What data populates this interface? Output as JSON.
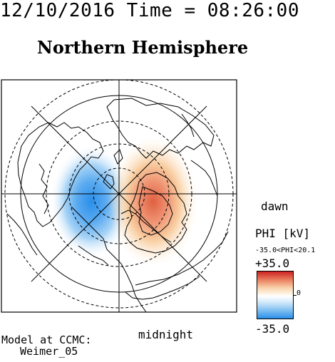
{
  "header": {
    "timestamp": "12/10/2016 Time = 08:26:00",
    "title": "Northern Hemisphere"
  },
  "map": {
    "projection": "polar stereographic",
    "grid": true,
    "cells_visible": [
      "Dusk convection cell (negative potential)",
      "Dawn convection cell (positive potential)"
    ],
    "colors": {
      "positive": "#e06040",
      "negative": "#2a8fea",
      "zero": "#ffffff"
    }
  },
  "labels": {
    "dawn": "dawn",
    "midnight": "midnight"
  },
  "colorbar": {
    "title": "PHI [kV]",
    "range_text": "-35.0<PHI<20.1",
    "max_label": "+35.0",
    "zero_label": "0",
    "min_label": "-35.0",
    "max_value": 35.0,
    "min_value": -35.0
  },
  "credit": {
    "line1": "Model at CCMC:",
    "line2": "Weimer_05"
  }
}
